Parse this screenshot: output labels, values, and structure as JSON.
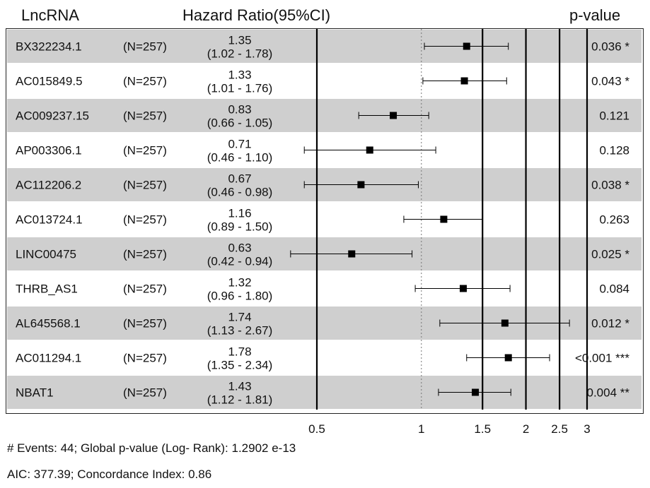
{
  "chart_data": {
    "type": "forest",
    "headers": {
      "lncrna": "LncRNA",
      "hr": "Hazard Ratio(95%CI)",
      "p": "p-value"
    },
    "x_scale": "log",
    "xlim": [
      0.38,
      3.2
    ],
    "ticks": [
      {
        "value": 0.5,
        "label": "0.5"
      },
      {
        "value": 1,
        "label": "1"
      },
      {
        "value": 1.5,
        "label": "1.5"
      },
      {
        "value": 2,
        "label": "2"
      },
      {
        "value": 2.5,
        "label": "2.5"
      },
      {
        "value": 3,
        "label": "3"
      }
    ],
    "reference_line": 1,
    "rows": [
      {
        "name": "BX322234.1",
        "n": "(N=257)",
        "hr": 1.35,
        "lower": 1.02,
        "upper": 1.78,
        "hr_label": "1.35",
        "ci_label": "(1.02 - 1.78)",
        "p": "0.036 *",
        "shaded": true
      },
      {
        "name": "AC015849.5",
        "n": "(N=257)",
        "hr": 1.33,
        "lower": 1.01,
        "upper": 1.76,
        "hr_label": "1.33",
        "ci_label": "(1.01 - 1.76)",
        "p": "0.043 *",
        "shaded": false
      },
      {
        "name": "AC009237.15",
        "n": "(N=257)",
        "hr": 0.83,
        "lower": 0.66,
        "upper": 1.05,
        "hr_label": "0.83",
        "ci_label": "(0.66 - 1.05)",
        "p": "0.121",
        "shaded": true
      },
      {
        "name": "AP003306.1",
        "n": "(N=257)",
        "hr": 0.71,
        "lower": 0.46,
        "upper": 1.1,
        "hr_label": "0.71",
        "ci_label": "(0.46 - 1.10)",
        "p": "0.128",
        "shaded": false
      },
      {
        "name": "AC112206.2",
        "n": "(N=257)",
        "hr": 0.67,
        "lower": 0.46,
        "upper": 0.98,
        "hr_label": "0.67",
        "ci_label": "(0.46 - 0.98)",
        "p": "0.038 *",
        "shaded": true
      },
      {
        "name": "AC013724.1",
        "n": "(N=257)",
        "hr": 1.16,
        "lower": 0.89,
        "upper": 1.5,
        "hr_label": "1.16",
        "ci_label": "(0.89 - 1.50)",
        "p": "0.263",
        "shaded": false
      },
      {
        "name": "LINC00475",
        "n": "(N=257)",
        "hr": 0.63,
        "lower": 0.42,
        "upper": 0.94,
        "hr_label": "0.63",
        "ci_label": "(0.42 - 0.94)",
        "p": "0.025 *",
        "shaded": true
      },
      {
        "name": "THRB_AS1",
        "n": "(N=257)",
        "hr": 1.32,
        "lower": 0.96,
        "upper": 1.8,
        "hr_label": "1.32",
        "ci_label": "(0.96 - 1.80)",
        "p": "0.084",
        "shaded": false
      },
      {
        "name": "AL645568.1",
        "n": "(N=257)",
        "hr": 1.74,
        "lower": 1.13,
        "upper": 2.67,
        "hr_label": "1.74",
        "ci_label": "(1.13 - 2.67)",
        "p": "0.012 *",
        "shaded": true
      },
      {
        "name": "AC011294.1",
        "n": "(N=257)",
        "hr": 1.78,
        "lower": 1.35,
        "upper": 2.34,
        "hr_label": "1.78",
        "ci_label": "(1.35 - 2.34)",
        "p": "<0.001 ***",
        "shaded": false
      },
      {
        "name": "NBAT1",
        "n": "(N=257)",
        "hr": 1.43,
        "lower": 1.12,
        "upper": 1.81,
        "hr_label": "1.43",
        "ci_label": "(1.12 - 1.81)",
        "p": "0.004 **",
        "shaded": true
      }
    ],
    "footer": {
      "events": "# Events: 44; Global p-value  (Log- Rank): 1.2902 e-13",
      "aic": "AIC: 377.39; Concordance Index: 0.86"
    },
    "colors": {
      "shade": "#cfcfcf",
      "marker": "#000000"
    }
  }
}
